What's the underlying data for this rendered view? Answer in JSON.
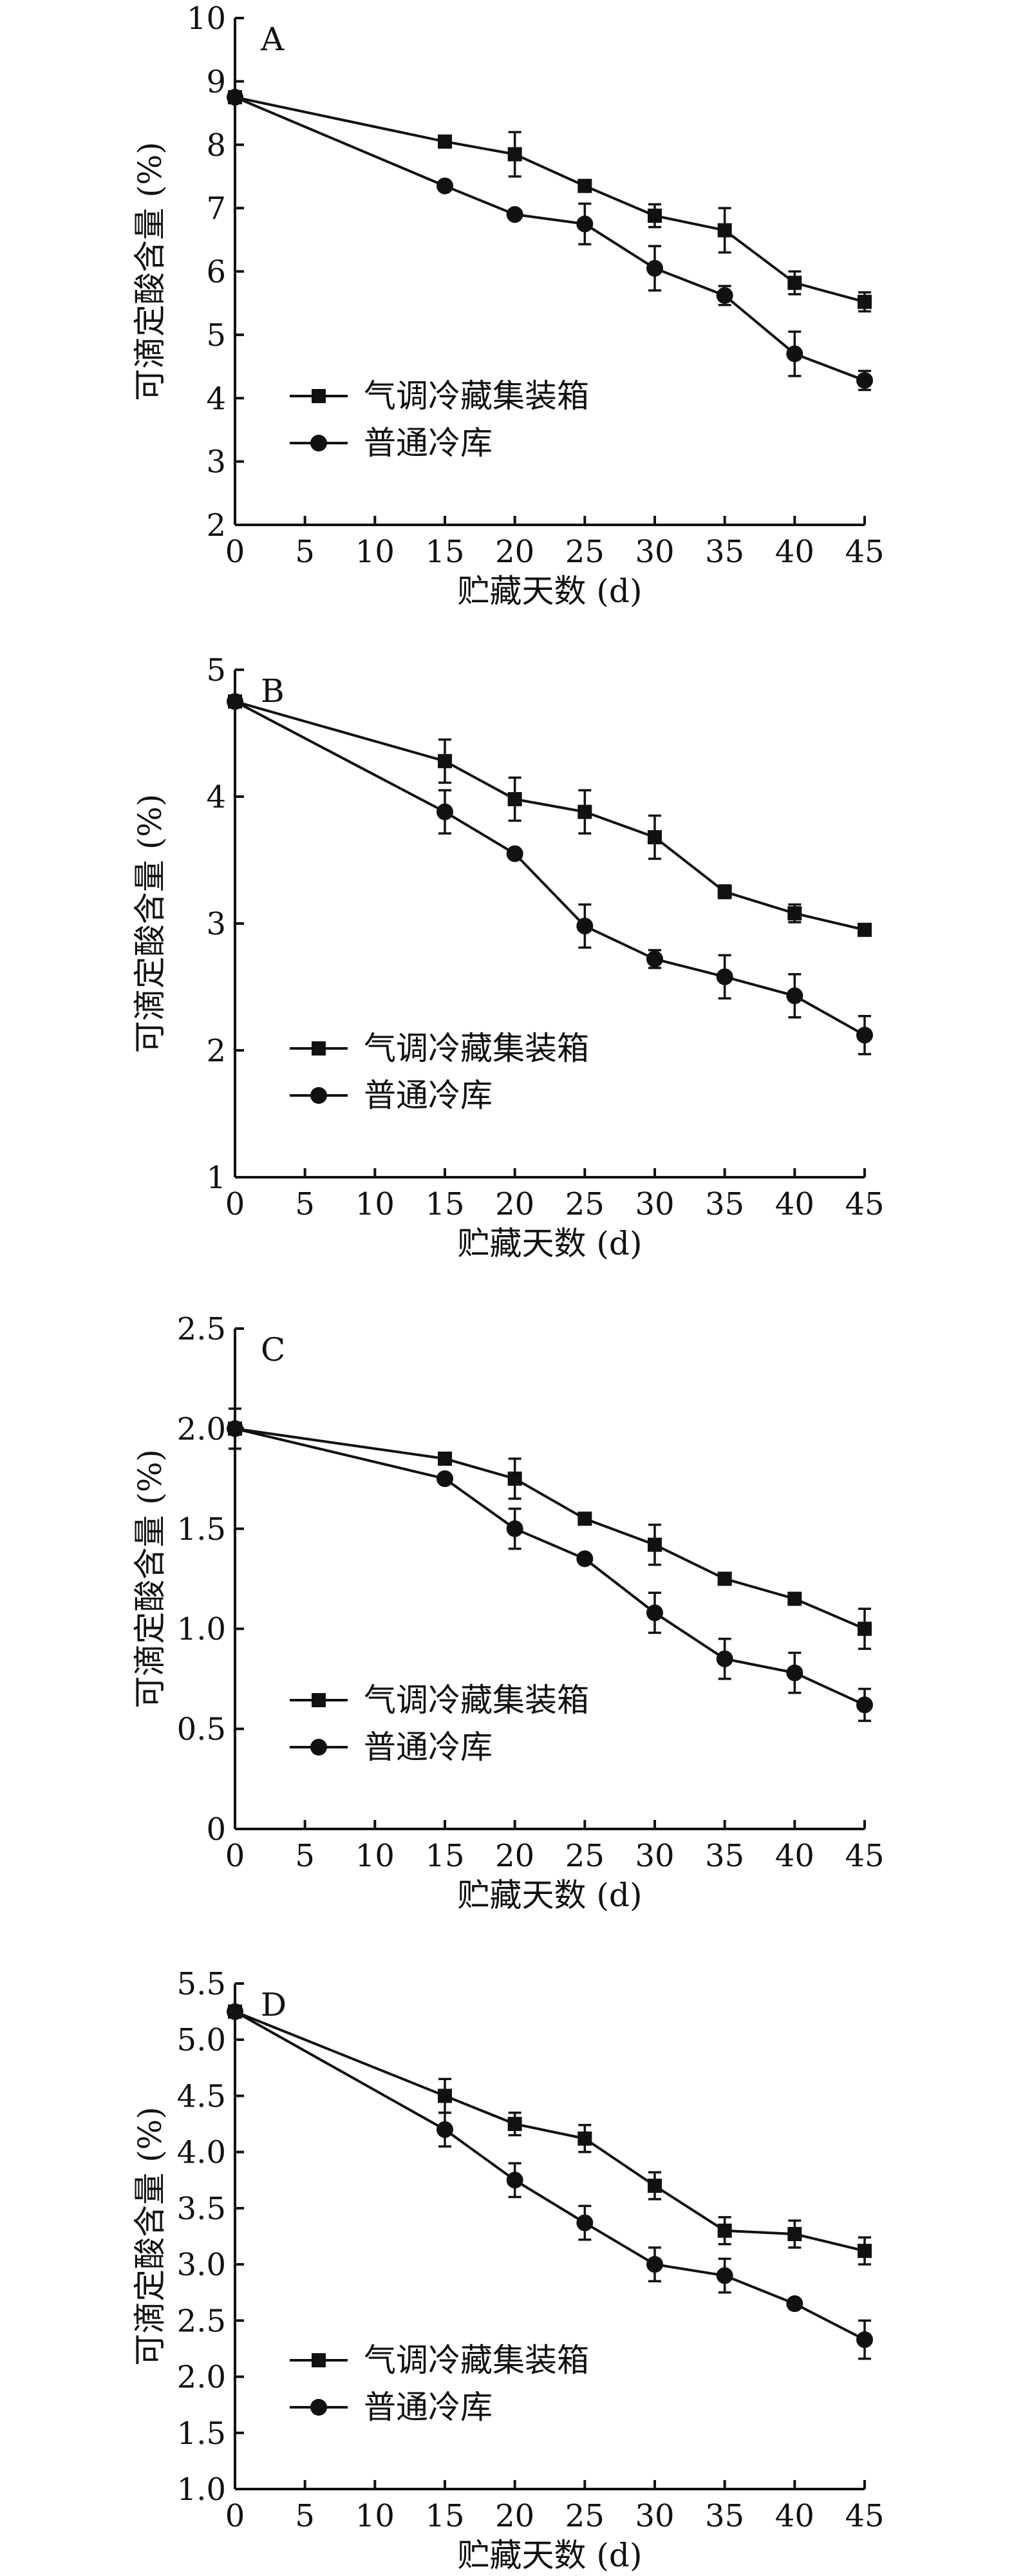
{
  "chart_data": [
    {
      "type": "line",
      "panel_label": "A",
      "xlabel": "贮藏天数 (d)",
      "ylabel": "可滴定酸含量 (%)",
      "x_ticks": [
        "0",
        "5",
        "10",
        "15",
        "20",
        "25",
        "30",
        "35",
        "40",
        "45"
      ],
      "y_ticks": [
        "2",
        "3",
        "4",
        "5",
        "6",
        "7",
        "8",
        "9",
        "10"
      ],
      "xlim": [
        0,
        45
      ],
      "ylim": [
        2,
        10
      ],
      "x": [
        0,
        15,
        20,
        25,
        30,
        35,
        40,
        45
      ],
      "series": [
        {
          "name": "气调冷藏集装箱",
          "marker": "square",
          "values": [
            8.75,
            8.05,
            7.85,
            7.35,
            6.88,
            6.65,
            5.82,
            5.52
          ],
          "errors": [
            0.0,
            0.0,
            0.35,
            0.0,
            0.18,
            0.35,
            0.18,
            0.15
          ]
        },
        {
          "name": "普通冷库",
          "marker": "circle",
          "values": [
            8.75,
            7.35,
            6.9,
            6.75,
            6.05,
            5.62,
            4.7,
            4.28
          ],
          "errors": [
            0.0,
            0.0,
            0.0,
            0.32,
            0.35,
            0.15,
            0.35,
            0.15
          ]
        }
      ],
      "legend_position": "lower-left",
      "grid": false
    },
    {
      "type": "line",
      "panel_label": "B",
      "xlabel": "贮藏天数 (d)",
      "ylabel": "可滴定酸含量 (%)",
      "x_ticks": [
        "0",
        "5",
        "10",
        "15",
        "20",
        "25",
        "30",
        "35",
        "40",
        "45"
      ],
      "y_ticks": [
        "1",
        "2",
        "3",
        "4",
        "5"
      ],
      "xlim": [
        0,
        45
      ],
      "ylim": [
        1,
        5
      ],
      "x": [
        0,
        15,
        20,
        25,
        30,
        35,
        40,
        45
      ],
      "series": [
        {
          "name": "气调冷藏集装箱",
          "marker": "square",
          "values": [
            4.75,
            4.28,
            3.98,
            3.88,
            3.68,
            3.25,
            3.08,
            2.95
          ],
          "errors": [
            0.0,
            0.17,
            0.17,
            0.17,
            0.17,
            0.05,
            0.07,
            0.0
          ]
        },
        {
          "name": "普通冷库",
          "marker": "circle",
          "values": [
            4.75,
            3.88,
            3.55,
            2.98,
            2.72,
            2.58,
            2.43,
            2.12
          ],
          "errors": [
            0.0,
            0.17,
            0.0,
            0.17,
            0.07,
            0.17,
            0.17,
            0.15
          ]
        }
      ],
      "legend_position": "lower-left",
      "grid": false
    },
    {
      "type": "line",
      "panel_label": "C",
      "xlabel": "贮藏天数 (d)",
      "ylabel": "可滴定酸含量 (%)",
      "x_ticks": [
        "0",
        "5",
        "10",
        "15",
        "20",
        "25",
        "30",
        "35",
        "40",
        "45"
      ],
      "y_ticks": [
        "0",
        "0.5",
        "1.0",
        "1.5",
        "2.0",
        "2.5"
      ],
      "xlim": [
        0,
        45
      ],
      "ylim": [
        0,
        2.5
      ],
      "x": [
        0,
        15,
        20,
        25,
        30,
        35,
        40,
        45
      ],
      "series": [
        {
          "name": "气调冷藏集装箱",
          "marker": "square",
          "values": [
            2.0,
            1.85,
            1.75,
            1.55,
            1.42,
            1.25,
            1.15,
            1.0
          ],
          "errors": [
            0.1,
            0.0,
            0.1,
            0.0,
            0.1,
            0.0,
            0.0,
            0.1
          ]
        },
        {
          "name": "普通冷库",
          "marker": "circle",
          "values": [
            2.0,
            1.75,
            1.5,
            1.35,
            1.08,
            0.85,
            0.78,
            0.62
          ],
          "errors": [
            0.1,
            0.0,
            0.1,
            0.0,
            0.1,
            0.1,
            0.1,
            0.08
          ]
        }
      ],
      "legend_position": "lower-left",
      "grid": false
    },
    {
      "type": "line",
      "panel_label": "D",
      "xlabel": "贮藏天数 (d)",
      "ylabel": "可滴定酸含量 (%)",
      "x_ticks": [
        "0",
        "5",
        "10",
        "15",
        "20",
        "25",
        "30",
        "35",
        "40",
        "45"
      ],
      "y_ticks": [
        "1.0",
        "1.5",
        "2.0",
        "2.5",
        "3.0",
        "3.5",
        "4.0",
        "4.5",
        "5.0",
        "5.5"
      ],
      "xlim": [
        0,
        45
      ],
      "ylim": [
        1,
        5.5
      ],
      "x": [
        0,
        15,
        20,
        25,
        30,
        35,
        40,
        45
      ],
      "series": [
        {
          "name": "气调冷藏集装箱",
          "marker": "square",
          "values": [
            5.25,
            4.5,
            4.25,
            4.12,
            3.7,
            3.3,
            3.27,
            3.12
          ],
          "errors": [
            0.0,
            0.15,
            0.1,
            0.12,
            0.12,
            0.12,
            0.12,
            0.12
          ]
        },
        {
          "name": "普通冷库",
          "marker": "circle",
          "values": [
            5.25,
            4.2,
            3.75,
            3.37,
            3.0,
            2.9,
            2.65,
            2.33
          ],
          "errors": [
            0.0,
            0.15,
            0.15,
            0.15,
            0.15,
            0.15,
            0.0,
            0.17
          ]
        }
      ],
      "legend_position": "lower-left",
      "grid": false
    }
  ]
}
